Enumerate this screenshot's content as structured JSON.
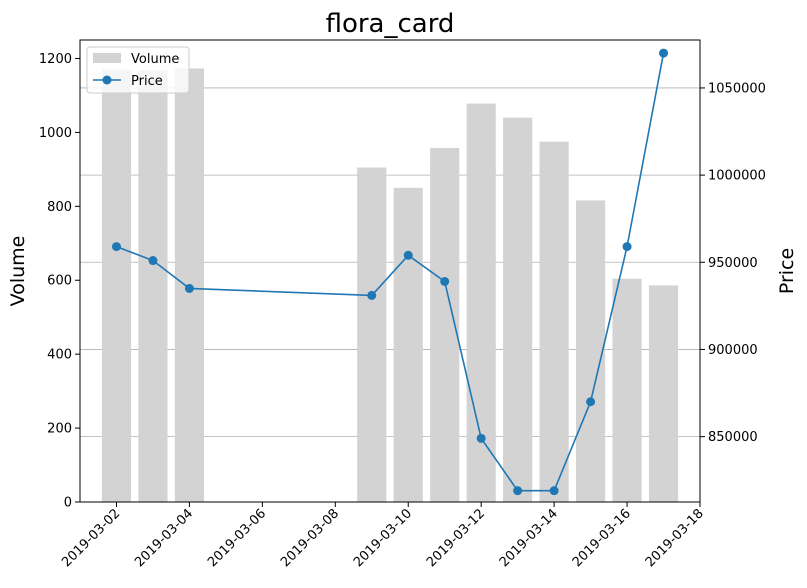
{
  "chart_data": {
    "type": "bar",
    "title": "flora_card",
    "ylabel": "Volume",
    "y2label": "Price",
    "x": [
      "2019-03-02",
      "2019-03-03",
      "2019-03-04",
      "2019-03-09",
      "2019-03-10",
      "2019-03-11",
      "2019-03-12",
      "2019-03-13",
      "2019-03-14",
      "2019-03-15",
      "2019-03-16",
      "2019-03-17"
    ],
    "series": [
      {
        "name": "Volume",
        "type": "bar",
        "axis": "left",
        "color": "#d3d3d3",
        "values": [
          1170,
          1168,
          1173,
          905,
          850,
          958,
          1078,
          1040,
          975,
          816,
          604,
          586
        ]
      },
      {
        "name": "Price",
        "type": "line",
        "axis": "right",
        "color": "#1f77b4",
        "marker": "circle",
        "values": [
          959000,
          951000,
          935000,
          931000,
          954000,
          939000,
          849000,
          819000,
          819000,
          870000,
          959000,
          1070000
        ]
      }
    ],
    "xticks": [
      "2019-03-02",
      "2019-03-04",
      "2019-03-06",
      "2019-03-08",
      "2019-03-10",
      "2019-03-12",
      "2019-03-14",
      "2019-03-16",
      "2019-03-18"
    ],
    "xlim": [
      "2019-03-01",
      "2019-03-18"
    ],
    "yticks": [
      "0",
      "200",
      "400",
      "600",
      "800",
      "1000",
      "1200"
    ],
    "ylim": [
      0,
      1250
    ],
    "y2ticks": [
      "850000",
      "900000",
      "950000",
      "1000000",
      "1050000"
    ],
    "y2lim": [
      812500,
      1077500
    ],
    "grid": "horizontal-right-axis",
    "legend": "top-left"
  }
}
